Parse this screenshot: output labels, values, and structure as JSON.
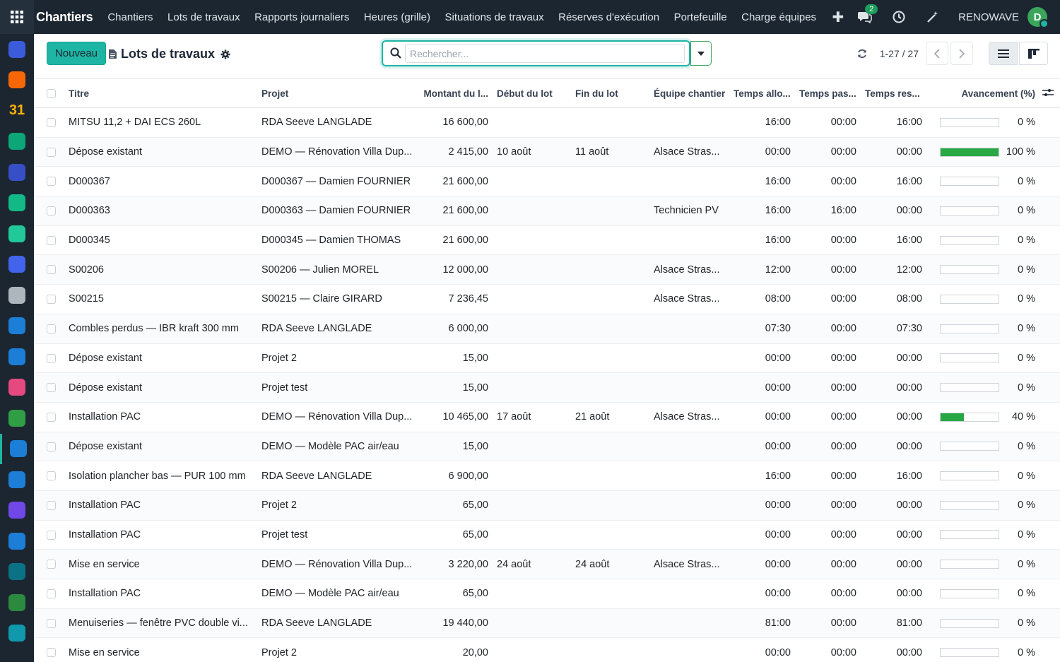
{
  "dock": {
    "apps": [
      {
        "icon": "discuss-icon",
        "color": "#3b5bdb"
      },
      {
        "icon": "chat-bubble-icon",
        "color": "#f76707"
      },
      {
        "icon": "calendar-31-icon",
        "color": "#e8590c",
        "text": "31"
      },
      {
        "icon": "pen-icon",
        "color": "#0ca678"
      },
      {
        "icon": "gauge-icon",
        "color": "#364fc7"
      },
      {
        "icon": "contacts-icon",
        "color": "#12b886"
      },
      {
        "icon": "layers-icon",
        "color": "#20c997"
      },
      {
        "icon": "dial-icon",
        "color": "#4263eb"
      },
      {
        "icon": "bank-icon",
        "color": "#adb5bd"
      },
      {
        "icon": "square-app-icon",
        "color": "#1c7ed6"
      },
      {
        "icon": "planning-icon",
        "color": "#1c7ed6"
      },
      {
        "icon": "dashboard-icon",
        "color": "#e64980"
      },
      {
        "icon": "green-app-icon",
        "color": "#2f9e44"
      },
      {
        "icon": "worksite-calendar-icon",
        "color": "#1c7ed6"
      },
      {
        "icon": "blue-app-icon",
        "color": "#1c7ed6"
      },
      {
        "icon": "purple-app-icon",
        "color": "#7048e8"
      },
      {
        "icon": "document-icon",
        "color": "#1c7ed6"
      },
      {
        "icon": "team-icon",
        "color": "#0b7285"
      },
      {
        "icon": "spreadsheet-icon",
        "color": "#2b8a3e"
      },
      {
        "icon": "check-icon",
        "color": "#1098ad"
      }
    ]
  },
  "navbar": {
    "brand": "Chantiers",
    "menu": [
      "Chantiers",
      "Lots de travaux",
      "Rapports journaliers",
      "Heures (grille)",
      "Situations de travaux",
      "Réserves d'exécution",
      "Portefeuille",
      "Charge équipes"
    ],
    "messages_count": "2",
    "company": "RENOWAVE",
    "avatar_letter": "D"
  },
  "control": {
    "new_label": "Nouveau",
    "title": "Lots de travaux",
    "search_placeholder": "Rechercher...",
    "pager": "1-27 / 27"
  },
  "table": {
    "columns": [
      "Titre",
      "Projet",
      "Montant du l...",
      "Début du lot",
      "Fin du lot",
      "Équipe chantier",
      "Temps allo...",
      "Temps pas...",
      "Temps res...",
      "Avancement (%)"
    ],
    "rows": [
      {
        "titre": "MITSU 11,2 + DAI ECS 260L",
        "projet": "RDA Seeve LANGLADE",
        "montant": "16 600,00",
        "debut": "",
        "fin": "",
        "equipe": "",
        "alloue": "16:00",
        "passe": "00:00",
        "reste": "16:00",
        "avancement": 0,
        "pct": "0 %"
      },
      {
        "titre": "Dépose existant",
        "projet": "DEMO — Rénovation Villa Dup...",
        "montant": "2 415,00",
        "debut": "10 août",
        "fin": "11 août",
        "equipe": "Alsace Stras...",
        "alloue": "00:00",
        "passe": "00:00",
        "reste": "00:00",
        "avancement": 100,
        "pct": "100 %"
      },
      {
        "titre": "D000367",
        "projet": "D000367 — Damien FOURNIER",
        "montant": "21 600,00",
        "debut": "",
        "fin": "",
        "equipe": "",
        "alloue": "16:00",
        "passe": "00:00",
        "reste": "16:00",
        "avancement": 0,
        "pct": "0 %"
      },
      {
        "titre": "D000363",
        "projet": "D000363 — Damien FOURNIER",
        "montant": "21 600,00",
        "debut": "",
        "fin": "",
        "equipe": "Technicien PV",
        "alloue": "16:00",
        "passe": "16:00",
        "reste": "00:00",
        "avancement": 0,
        "pct": "0 %"
      },
      {
        "titre": "D000345",
        "projet": "D000345 — Damien THOMAS",
        "montant": "21 600,00",
        "debut": "",
        "fin": "",
        "equipe": "",
        "alloue": "16:00",
        "passe": "00:00",
        "reste": "16:00",
        "avancement": 0,
        "pct": "0 %"
      },
      {
        "titre": "S00206",
        "projet": "S00206 — Julien MOREL",
        "montant": "12 000,00",
        "debut": "",
        "fin": "",
        "equipe": "Alsace Stras...",
        "alloue": "12:00",
        "passe": "00:00",
        "reste": "12:00",
        "avancement": 0,
        "pct": "0 %"
      },
      {
        "titre": "S00215",
        "projet": "S00215 — Claire GIRARD",
        "montant": "7 236,45",
        "debut": "",
        "fin": "",
        "equipe": "Alsace Stras...",
        "alloue": "08:00",
        "passe": "00:00",
        "reste": "08:00",
        "avancement": 0,
        "pct": "0 %"
      },
      {
        "titre": "Combles perdus — IBR kraft 300 mm",
        "projet": "RDA Seeve LANGLADE",
        "montant": "6 000,00",
        "debut": "",
        "fin": "",
        "equipe": "",
        "alloue": "07:30",
        "passe": "00:00",
        "reste": "07:30",
        "avancement": 0,
        "pct": "0 %"
      },
      {
        "titre": "Dépose existant",
        "projet": "Projet 2",
        "montant": "15,00",
        "debut": "",
        "fin": "",
        "equipe": "",
        "alloue": "00:00",
        "passe": "00:00",
        "reste": "00:00",
        "avancement": 0,
        "pct": "0 %"
      },
      {
        "titre": "Dépose existant",
        "projet": "Projet test",
        "montant": "15,00",
        "debut": "",
        "fin": "",
        "equipe": "",
        "alloue": "00:00",
        "passe": "00:00",
        "reste": "00:00",
        "avancement": 0,
        "pct": "0 %"
      },
      {
        "titre": "Installation PAC",
        "projet": "DEMO — Rénovation Villa Dup...",
        "montant": "10 465,00",
        "debut": "17 août",
        "fin": "21 août",
        "equipe": "Alsace Stras...",
        "alloue": "00:00",
        "passe": "00:00",
        "reste": "00:00",
        "avancement": 40,
        "pct": "40 %"
      },
      {
        "titre": "Dépose existant",
        "projet": "DEMO — Modèle PAC air/eau",
        "montant": "15,00",
        "debut": "",
        "fin": "",
        "equipe": "",
        "alloue": "00:00",
        "passe": "00:00",
        "reste": "00:00",
        "avancement": 0,
        "pct": "0 %"
      },
      {
        "titre": "Isolation plancher bas — PUR 100 mm",
        "projet": "RDA Seeve LANGLADE",
        "montant": "6 900,00",
        "debut": "",
        "fin": "",
        "equipe": "",
        "alloue": "16:00",
        "passe": "00:00",
        "reste": "16:00",
        "avancement": 0,
        "pct": "0 %"
      },
      {
        "titre": "Installation PAC",
        "projet": "Projet 2",
        "montant": "65,00",
        "debut": "",
        "fin": "",
        "equipe": "",
        "alloue": "00:00",
        "passe": "00:00",
        "reste": "00:00",
        "avancement": 0,
        "pct": "0 %"
      },
      {
        "titre": "Installation PAC",
        "projet": "Projet test",
        "montant": "65,00",
        "debut": "",
        "fin": "",
        "equipe": "",
        "alloue": "00:00",
        "passe": "00:00",
        "reste": "00:00",
        "avancement": 0,
        "pct": "0 %"
      },
      {
        "titre": "Mise en service",
        "projet": "DEMO — Rénovation Villa Dup...",
        "montant": "3 220,00",
        "debut": "24 août",
        "fin": "24 août",
        "equipe": "Alsace Stras...",
        "alloue": "00:00",
        "passe": "00:00",
        "reste": "00:00",
        "avancement": 0,
        "pct": "0 %"
      },
      {
        "titre": "Installation PAC",
        "projet": "DEMO — Modèle PAC air/eau",
        "montant": "65,00",
        "debut": "",
        "fin": "",
        "equipe": "",
        "alloue": "00:00",
        "passe": "00:00",
        "reste": "00:00",
        "avancement": 0,
        "pct": "0 %"
      },
      {
        "titre": "Menuiseries — fenêtre PVC double vi...",
        "projet": "RDA Seeve LANGLADE",
        "montant": "19 440,00",
        "debut": "",
        "fin": "",
        "equipe": "",
        "alloue": "81:00",
        "passe": "00:00",
        "reste": "81:00",
        "avancement": 0,
        "pct": "0 %"
      },
      {
        "titre": "Mise en service",
        "projet": "Projet 2",
        "montant": "20,00",
        "debut": "",
        "fin": "",
        "equipe": "",
        "alloue": "00:00",
        "passe": "00:00",
        "reste": "00:00",
        "avancement": 0,
        "pct": "0 %"
      }
    ]
  },
  "colors": {
    "accent": "#1fb5a5",
    "progress": "#28a745",
    "navbar": "#1b2631"
  }
}
